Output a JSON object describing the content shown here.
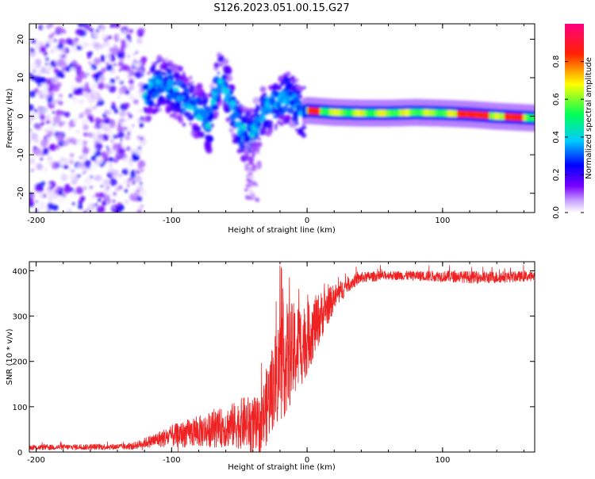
{
  "title": "S126.2023.051.00.15.G27",
  "colors": {
    "snr_line": "#ee2222",
    "axis": "#000000",
    "colormap": [
      "#ffffff",
      "#7a00ff",
      "#0000ff",
      "#00e5ff",
      "#00ff44",
      "#ffff00",
      "#ff0000",
      "#ff0080"
    ]
  },
  "chart_data": [
    {
      "type": "heatmap",
      "title": "S126.2023.051.00.15.G27",
      "xlabel": "Height of straight line (km)",
      "ylabel": "Frequency (Hz)",
      "xlim": [
        -205,
        168
      ],
      "ylim": [
        -25,
        24
      ],
      "x_ticks": [
        -200,
        -100,
        0,
        100
      ],
      "y_ticks": [
        -20,
        -10,
        0,
        10,
        20
      ],
      "colorbar": {
        "label": "Normalized spectral amplitude",
        "range": [
          0,
          1
        ],
        "ticks": [
          0.0,
          0.2,
          0.4,
          0.6,
          0.8
        ]
      },
      "ridge": [
        {
          "x": -200,
          "y": 10
        },
        {
          "x": -180,
          "y": 12
        },
        {
          "x": -160,
          "y": 9
        },
        {
          "x": -140,
          "y": 8
        },
        {
          "x": -120,
          "y": 5
        },
        {
          "x": -110,
          "y": 9
        },
        {
          "x": -100,
          "y": 7
        },
        {
          "x": -95,
          "y": 6
        },
        {
          "x": -90,
          "y": 4
        },
        {
          "x": -85,
          "y": 3
        },
        {
          "x": -80,
          "y": 1
        },
        {
          "x": -72,
          "y": -2
        },
        {
          "x": -65,
          "y": 10
        },
        {
          "x": -60,
          "y": 7
        },
        {
          "x": -55,
          "y": 2
        },
        {
          "x": -50,
          "y": -3
        },
        {
          "x": -45,
          "y": -5
        },
        {
          "x": -40,
          "y": -4
        },
        {
          "x": -35,
          "y": -1
        },
        {
          "x": -30,
          "y": 2
        },
        {
          "x": -25,
          "y": 3
        },
        {
          "x": -20,
          "y": 4
        },
        {
          "x": -15,
          "y": 5
        },
        {
          "x": -10,
          "y": 4
        },
        {
          "x": -5,
          "y": 1
        },
        {
          "x": 0,
          "y": 1.5
        },
        {
          "x": 20,
          "y": 1
        },
        {
          "x": 40,
          "y": 0.8
        },
        {
          "x": 60,
          "y": 0.8
        },
        {
          "x": 80,
          "y": 1
        },
        {
          "x": 100,
          "y": 0.8
        },
        {
          "x": 120,
          "y": 0.5
        },
        {
          "x": 140,
          "y": 0
        },
        {
          "x": 168,
          "y": -0.5
        }
      ]
    },
    {
      "type": "line",
      "xlabel": "Height of straight line (km)",
      "ylabel": "SNR (10 * v/v)",
      "xlim": [
        -205,
        168
      ],
      "ylim": [
        0,
        420
      ],
      "x_ticks": [
        -200,
        -100,
        0,
        100
      ],
      "y_ticks": [
        0,
        100,
        200,
        300,
        400
      ],
      "envelope": [
        {
          "x": -205,
          "mean": 10,
          "spread": 12
        },
        {
          "x": -130,
          "mean": 12,
          "spread": 14
        },
        {
          "x": -118,
          "mean": 22,
          "spread": 25
        },
        {
          "x": -100,
          "mean": 35,
          "spread": 50
        },
        {
          "x": -80,
          "mean": 45,
          "spread": 70
        },
        {
          "x": -60,
          "mean": 55,
          "spread": 90
        },
        {
          "x": -45,
          "mean": 65,
          "spread": 120
        },
        {
          "x": -35,
          "mean": 50,
          "spread": 140
        },
        {
          "x": -25,
          "mean": 150,
          "spread": 200
        },
        {
          "x": -18,
          "mean": 200,
          "spread": 260
        },
        {
          "x": -10,
          "mean": 220,
          "spread": 220
        },
        {
          "x": 0,
          "mean": 250,
          "spread": 160
        },
        {
          "x": 10,
          "mean": 300,
          "spread": 110
        },
        {
          "x": 20,
          "mean": 340,
          "spread": 60
        },
        {
          "x": 30,
          "mean": 370,
          "spread": 35
        },
        {
          "x": 40,
          "mean": 385,
          "spread": 25
        },
        {
          "x": 60,
          "mean": 390,
          "spread": 20
        },
        {
          "x": 100,
          "mean": 388,
          "spread": 25
        },
        {
          "x": 130,
          "mean": 385,
          "spread": 28
        },
        {
          "x": 168,
          "mean": 388,
          "spread": 22
        }
      ],
      "peaks": [
        {
          "x": -20,
          "y": 412
        },
        {
          "x": -13,
          "y": 385
        },
        {
          "x": -6,
          "y": 360
        },
        {
          "x": 90,
          "y": 412
        },
        {
          "x": 105,
          "y": 412
        }
      ]
    }
  ]
}
